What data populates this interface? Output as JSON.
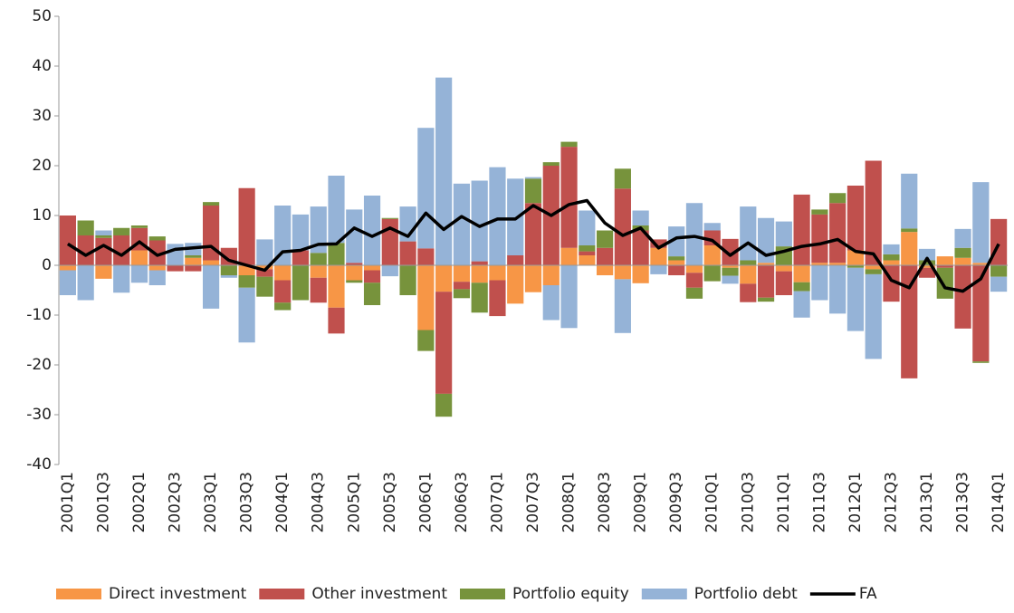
{
  "chart_data": {
    "type": "stacked-bar-line",
    "categories": [
      "2001Q1",
      null,
      "2001Q3",
      null,
      "2002Q1",
      null,
      "2002Q3",
      null,
      "2003Q1",
      null,
      "2003Q3",
      null,
      "2004Q1",
      null,
      "2004Q3",
      null,
      "2005Q1",
      null,
      "2005Q3",
      null,
      "2006Q1",
      null,
      "2006Q3",
      null,
      "2007Q1",
      null,
      "2007Q3",
      null,
      "2008Q1",
      null,
      "2008Q3",
      null,
      "2009Q1",
      null,
      "2009Q3",
      null,
      "2010Q1",
      null,
      "2010Q3",
      null,
      "2011Q1",
      null,
      "2011Q3",
      null,
      "2012Q1",
      null,
      "2012Q3",
      null,
      "2013Q1",
      null,
      "2013Q3",
      null,
      "2014Q1"
    ],
    "series": [
      {
        "name": "Direct investment",
        "color": "#f79646",
        "values": [
          -1,
          0,
          -2.7,
          0,
          3,
          -1,
          0,
          1.5,
          1,
          0,
          -2,
          -0.8,
          -3,
          0,
          -2.5,
          -8.5,
          -3,
          -1,
          0,
          0,
          -13,
          -5.3,
          -3.3,
          -3.5,
          -3,
          -7.7,
          -5.4,
          -4,
          3.5,
          2,
          -2,
          -2.8,
          -3.6,
          3.5,
          1,
          -1.5,
          4,
          -0.5,
          -3.7,
          0.5,
          -1.2,
          -3.4,
          0.5,
          0.5,
          3,
          -0.8,
          1,
          6.7,
          -0.5,
          1.8,
          1.5,
          0.5,
          0
        ]
      },
      {
        "name": "Other investment",
        "color": "#c0504d",
        "values": [
          10,
          6,
          5.5,
          6,
          4.5,
          5,
          -1.2,
          -1.2,
          11,
          3.5,
          15.5,
          -1.5,
          -4.5,
          3,
          -5,
          -5.2,
          0.5,
          -2.5,
          9.3,
          4.8,
          3.4,
          -20.5,
          -1.5,
          0.8,
          -7.2,
          2,
          12.5,
          20,
          20.3,
          0.8,
          3.5,
          15.4,
          7,
          1.7,
          -2,
          -3,
          3,
          5.3,
          -3.7,
          -6.5,
          -4.8,
          14.2,
          9.7,
          12,
          13,
          21,
          -7.3,
          -22.7,
          -2,
          -0.5,
          -12.7,
          -19.3,
          9.3
        ]
      },
      {
        "name": "Portfolio equity",
        "color": "#77933c",
        "values": [
          0,
          3,
          0.5,
          1.5,
          0.5,
          0.8,
          0,
          0.5,
          0.7,
          -2,
          -2.5,
          -4,
          -1.5,
          -7,
          2.5,
          4.5,
          -0.5,
          -4.5,
          0.2,
          -6,
          -4.2,
          -4.6,
          -1.8,
          -6,
          0,
          0,
          4.9,
          0.7,
          1,
          1.2,
          3.5,
          4,
          1,
          0,
          0.8,
          -2.2,
          -3.2,
          -1.6,
          1,
          -0.8,
          3.8,
          -1.8,
          1,
          2,
          -0.5,
          -1,
          1.2,
          0.7,
          1,
          -6.2,
          2,
          -0.3,
          -2.3
        ]
      },
      {
        "name": "Portfolio debt",
        "color": "#95b3d7",
        "values": [
          -5,
          -7,
          1,
          -5.5,
          -3.5,
          -3,
          4.3,
          2.5,
          -8.7,
          -0.5,
          -11,
          5.2,
          12,
          7.2,
          9.3,
          13.5,
          10.7,
          14,
          -2.2,
          7,
          24.2,
          37.7,
          16.4,
          16.2,
          19.7,
          15.4,
          0.3,
          -7,
          -12.6,
          7,
          0,
          -10.8,
          3,
          -1.8,
          6,
          12.5,
          1.5,
          -1.6,
          10.8,
          9,
          5,
          -5.3,
          -7,
          -9.7,
          -12.7,
          -17,
          2,
          11,
          2.3,
          0,
          3.8,
          16.2,
          -3
        ]
      }
    ],
    "line": {
      "name": "FA",
      "color": "#000000",
      "values": [
        4.3,
        2,
        4,
        2,
        4.7,
        2,
        3.2,
        3.5,
        3.8,
        1,
        0,
        -1,
        2.7,
        3,
        4.2,
        4.3,
        7.5,
        5.8,
        7.5,
        5.8,
        10.5,
        7.2,
        9.8,
        7.8,
        9.3,
        9.3,
        12,
        10,
        12.2,
        13,
        8.5,
        6,
        7.5,
        3.5,
        5.5,
        5.8,
        5,
        2,
        4.5,
        2,
        2.8,
        3.8,
        4.3,
        5.2,
        2.8,
        2.3,
        -3,
        -4.5,
        1.4,
        -4.5,
        -5.2,
        -2.7,
        4.3
      ]
    },
    "ylim": [
      -40,
      50
    ],
    "yticks": [
      -40,
      -30,
      -20,
      -10,
      0,
      10,
      20,
      30,
      40,
      50
    ],
    "grid": false
  }
}
